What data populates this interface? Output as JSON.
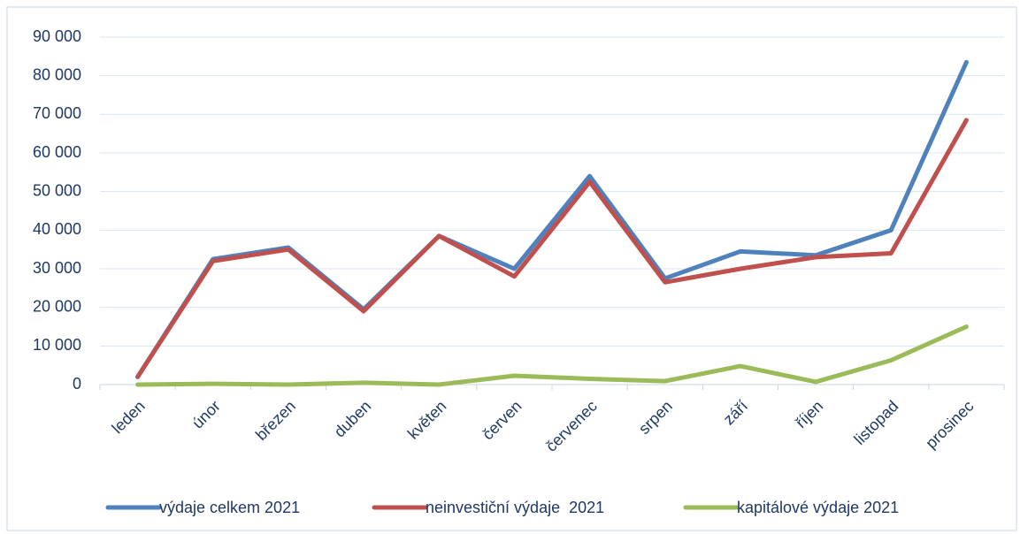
{
  "chart_data": {
    "type": "line",
    "categories": [
      "leden",
      "únor",
      "březen",
      "duben",
      "květen",
      "červen",
      "červenec",
      "srpen",
      "září",
      "říjen",
      "listopad",
      "prosinec"
    ],
    "series": [
      {
        "name": "výdaje celkem 2021",
        "color": "#4f81bd",
        "values": [
          2000,
          32500,
          35500,
          19500,
          38500,
          30000,
          54000,
          27500,
          34500,
          33500,
          40000,
          83500
        ]
      },
      {
        "name": "neinvestiční výdaje  2021",
        "color": "#c0504d",
        "values": [
          2000,
          32000,
          35000,
          19000,
          38500,
          28000,
          52500,
          26500,
          30000,
          33000,
          34000,
          68500
        ]
      },
      {
        "name": "kapitálové výdaje 2021",
        "color": "#9bbb59",
        "values": [
          0,
          200,
          0,
          500,
          0,
          2300,
          1500,
          900,
          4800,
          700,
          6300,
          15000
        ]
      }
    ],
    "ylim": [
      0,
      90000
    ],
    "yticks": [
      0,
      {
        "value": 10000,
        "label": "10 000"
      },
      {
        "value": 20000,
        "label": "20 000"
      },
      {
        "value": 30000,
        "label": "30 000"
      },
      {
        "value": 40000,
        "label": "40 000"
      },
      {
        "value": 50000,
        "label": "50 000"
      },
      {
        "value": 60000,
        "label": "60 000"
      },
      {
        "value": 70000,
        "label": "70 000"
      },
      {
        "value": 80000,
        "label": "80 000"
      },
      {
        "value": 90000,
        "label": "90 000"
      }
    ],
    "grid": true,
    "legend": "bottom"
  }
}
